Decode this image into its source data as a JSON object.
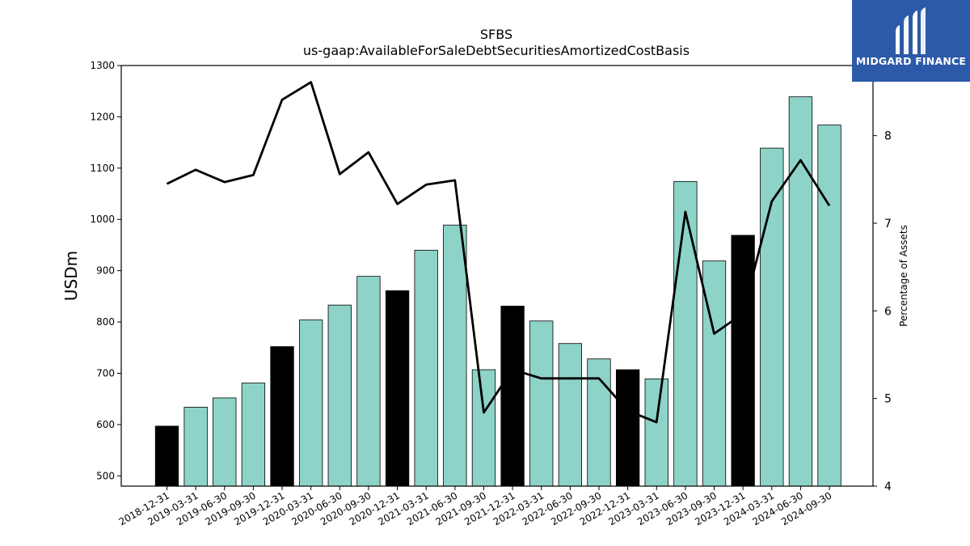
{
  "brand": {
    "name": "MIDGARD FINANCE",
    "bg_color": "#2d5aa8"
  },
  "chart_data": {
    "type": "bar",
    "title": "SFBS",
    "subtitle": "us-gaap:AvailableForSaleDebtSecuritiesAmortizedCostBasis",
    "ylabel": "USDm",
    "y2label": "Percentage of Assets",
    "ylim": [
      480,
      1300
    ],
    "y2lim": [
      4,
      8.8
    ],
    "yticks": [
      500,
      600,
      700,
      800,
      900,
      1000,
      1100,
      1200,
      1300
    ],
    "y2ticks": [
      4,
      5,
      6,
      7,
      8
    ],
    "categories": [
      "2018-12-31",
      "2019-03-31",
      "2019-06-30",
      "2019-09-30",
      "2019-12-31",
      "2020-03-31",
      "2020-06-30",
      "2020-09-30",
      "2020-12-31",
      "2021-03-31",
      "2021-06-30",
      "2021-09-30",
      "2021-12-31",
      "2022-03-31",
      "2022-06-30",
      "2022-09-30",
      "2022-12-31",
      "2023-03-31",
      "2023-06-30",
      "2023-09-30",
      "2023-12-31",
      "2024-03-31",
      "2024-06-30",
      "2024-09-30"
    ],
    "series": [
      {
        "type": "bar",
        "axis": "left",
        "values": [
          597,
          634,
          652,
          681,
          752,
          804,
          833,
          889,
          861,
          940,
          989,
          707,
          831,
          802,
          758,
          728,
          707,
          689,
          1074,
          919,
          969,
          1139,
          1239,
          1184
        ],
        "colors": [
          "#000000",
          "#8dd3c7",
          "#8dd3c7",
          "#8dd3c7",
          "#000000",
          "#8dd3c7",
          "#8dd3c7",
          "#8dd3c7",
          "#000000",
          "#8dd3c7",
          "#8dd3c7",
          "#8dd3c7",
          "#000000",
          "#8dd3c7",
          "#8dd3c7",
          "#8dd3c7",
          "#000000",
          "#8dd3c7",
          "#8dd3c7",
          "#8dd3c7",
          "#000000",
          "#8dd3c7",
          "#8dd3c7",
          "#8dd3c7"
        ]
      },
      {
        "type": "line",
        "axis": "right",
        "color": "#000000",
        "values": [
          7.45,
          7.61,
          7.47,
          7.55,
          8.41,
          8.61,
          7.56,
          7.81,
          7.22,
          7.44,
          7.49,
          4.84,
          5.33,
          5.23,
          5.23,
          5.23,
          4.86,
          4.73,
          7.13,
          5.74,
          5.97,
          7.25,
          7.72,
          7.2
        ]
      }
    ],
    "grid": false,
    "legend": "none"
  }
}
